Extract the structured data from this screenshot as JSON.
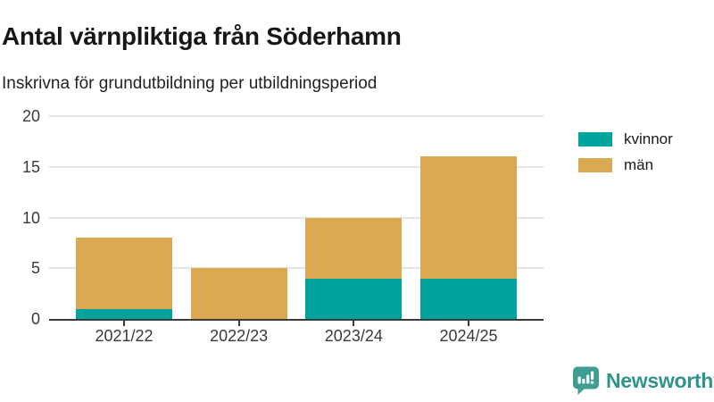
{
  "title": "Antal värnpliktiga från Söderhamn",
  "subtitle": "Inskrivna för grundutbildning per utbildningsperiod",
  "chart_data": {
    "type": "bar",
    "stacked": true,
    "title": "Antal värnpliktiga från Söderhamn",
    "subtitle": "Inskrivna för grundutbildning per utbildningsperiod",
    "categories": [
      "2021/22",
      "2022/23",
      "2023/24",
      "2024/25"
    ],
    "series": [
      {
        "name": "kvinnor",
        "color": "#00a49d",
        "values": [
          1,
          0,
          4,
          4
        ]
      },
      {
        "name": "män",
        "color": "#dba952",
        "values": [
          7,
          5,
          6,
          12
        ]
      }
    ],
    "totals": [
      8,
      5,
      10,
      16
    ],
    "xlabel": "",
    "ylabel": "",
    "ylim": [
      0,
      20
    ],
    "yticks": [
      0,
      5,
      10,
      15,
      20
    ],
    "grid": true,
    "legend_position": "top-right"
  },
  "legend": {
    "items": [
      {
        "label": "kvinnor",
        "color": "#00a49d"
      },
      {
        "label": "män",
        "color": "#dba952"
      }
    ]
  },
  "footer": {
    "brand": "Newsworthy",
    "brand_color": "#2f948b",
    "logo_icon": "bar-chart-speech-bubble-icon",
    "logo_color": "#3f9e94"
  },
  "colors": {
    "axis": "#3b3b3b",
    "grid": "#e4e4e4",
    "title_text": "#171717"
  }
}
